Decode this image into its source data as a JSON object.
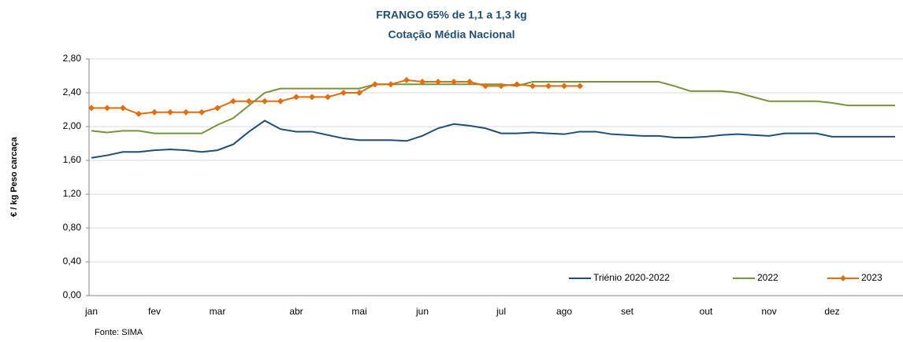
{
  "chart_data": {
    "type": "line",
    "title": "FRANGO 65% de 1,1 a 1,3 kg",
    "subtitle": "Cotação Média Nacional",
    "y_label": "€ / kg Peso carcaça",
    "source": "Fonte: SIMA",
    "categories": [
      "jan",
      null,
      null,
      null,
      "fev",
      null,
      null,
      null,
      "mar",
      null,
      null,
      null,
      null,
      "abr",
      null,
      null,
      null,
      "mai",
      null,
      null,
      null,
      "jun",
      null,
      null,
      null,
      null,
      "jul",
      null,
      null,
      null,
      "ago",
      null,
      null,
      null,
      "set",
      null,
      null,
      null,
      null,
      "out",
      null,
      null,
      null,
      "nov",
      null,
      null,
      null,
      "dez",
      null,
      null,
      null,
      null
    ],
    "ylim": [
      0,
      2.8
    ],
    "yticks": [
      {
        "value": 0,
        "label": "0,00"
      },
      {
        "value": 0.4,
        "label": "0,40"
      },
      {
        "value": 0.8,
        "label": "0,80"
      },
      {
        "value": 1.2,
        "label": "1,20"
      },
      {
        "value": 1.6,
        "label": "1,60"
      },
      {
        "value": 2.0,
        "label": "2,00"
      },
      {
        "value": 2.4,
        "label": "2,40"
      },
      {
        "value": 2.8,
        "label": "2,80"
      }
    ],
    "grid": true,
    "legend": "bottom-right",
    "series": [
      {
        "name": "Triénio 2020-2022",
        "color": "#1f4e79",
        "marker": false,
        "values": [
          1.63,
          1.66,
          1.7,
          1.7,
          1.72,
          1.73,
          1.72,
          1.7,
          1.72,
          1.79,
          1.94,
          2.07,
          1.97,
          1.94,
          1.94,
          1.9,
          1.86,
          1.84,
          1.84,
          1.84,
          1.83,
          1.89,
          1.98,
          2.03,
          2.01,
          1.98,
          1.92,
          1.92,
          1.93,
          1.92,
          1.91,
          1.94,
          1.94,
          1.91,
          1.9,
          1.89,
          1.89,
          1.87,
          1.87,
          1.88,
          1.9,
          1.91,
          1.9,
          1.89,
          1.92,
          1.92,
          1.92,
          1.88,
          1.88,
          1.88,
          1.88,
          1.88
        ]
      },
      {
        "name": "2022",
        "color": "#77933c",
        "marker": false,
        "values": [
          1.95,
          1.93,
          1.95,
          1.95,
          1.92,
          1.92,
          1.92,
          1.92,
          2.02,
          2.1,
          2.25,
          2.4,
          2.45,
          2.45,
          2.45,
          2.45,
          2.45,
          2.45,
          2.5,
          2.5,
          2.5,
          2.5,
          2.5,
          2.5,
          2.5,
          2.5,
          2.5,
          2.48,
          2.53,
          2.53,
          2.53,
          2.53,
          2.53,
          2.53,
          2.53,
          2.53,
          2.53,
          2.48,
          2.42,
          2.42,
          2.42,
          2.4,
          2.35,
          2.3,
          2.3,
          2.3,
          2.3,
          2.28,
          2.25,
          2.25,
          2.25,
          2.25
        ]
      },
      {
        "name": "2023",
        "color": "#e46c0a",
        "marker": true,
        "values": [
          2.22,
          2.22,
          2.22,
          2.15,
          2.17,
          2.17,
          2.17,
          2.17,
          2.22,
          2.3,
          2.3,
          2.3,
          2.3,
          2.35,
          2.35,
          2.35,
          2.4,
          2.4,
          2.5,
          2.5,
          2.55,
          2.53,
          2.53,
          2.53,
          2.53,
          2.48,
          2.48,
          2.5,
          2.48,
          2.48,
          2.48,
          2.48,
          null,
          null,
          null,
          null,
          null,
          null,
          null,
          null,
          null,
          null,
          null,
          null,
          null,
          null,
          null,
          null,
          null,
          null,
          null,
          null
        ]
      }
    ]
  }
}
